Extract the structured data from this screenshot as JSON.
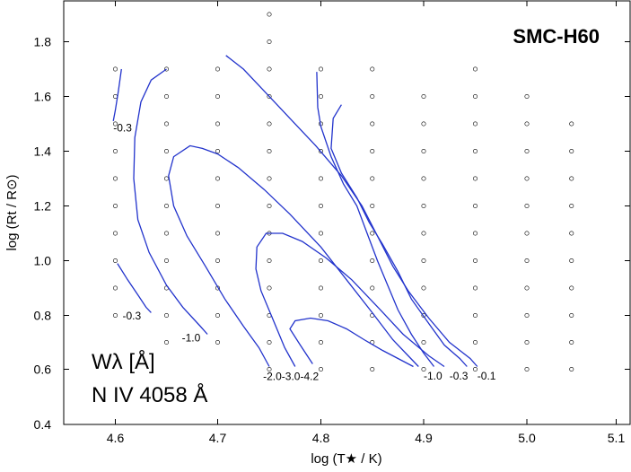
{
  "chart_data": {
    "type": "scatter",
    "title": "SMC-H60",
    "xlabel": "log (T★ / K)",
    "ylabel": "log (Rt / R⊙)",
    "xlim": [
      4.55,
      5.1
    ],
    "ylim": [
      0.4,
      1.95
    ],
    "x_ticks": [
      4.6,
      4.7,
      4.8,
      4.9,
      5.0,
      5.1
    ],
    "x_tick_labels": [
      "4.6",
      "4.7",
      "4.8",
      "4.9",
      "5.0",
      "5.1"
    ],
    "y_ticks": [
      0.4,
      0.6,
      0.8,
      1.0,
      1.2,
      1.4,
      1.6,
      1.8
    ],
    "y_tick_labels": [
      "0.4",
      "0.6",
      "0.8",
      "1.0",
      "1.2",
      "1.4",
      "1.6",
      "1.8"
    ],
    "annotation_lines": [
      "Wλ [Å]",
      "N IV 4058 Å"
    ],
    "grid": false,
    "model_grid": [
      {
        "x": 4.6,
        "y": [
          0.8,
          0.9,
          1.0,
          1.1,
          1.2,
          1.3,
          1.4,
          1.5,
          1.6,
          1.7
        ]
      },
      {
        "x": 4.65,
        "y": [
          0.7,
          0.8,
          0.9,
          1.0,
          1.1,
          1.2,
          1.3,
          1.4,
          1.5,
          1.6,
          1.7
        ]
      },
      {
        "x": 4.7,
        "y": [
          0.7,
          0.8,
          0.9,
          1.0,
          1.1,
          1.2,
          1.3,
          1.4,
          1.5,
          1.6,
          1.7
        ]
      },
      {
        "x": 4.75,
        "y": [
          0.6,
          0.7,
          0.8,
          0.9,
          1.0,
          1.1,
          1.2,
          1.3,
          1.4,
          1.5,
          1.6,
          1.7,
          1.8,
          1.9
        ]
      },
      {
        "x": 4.8,
        "y": [
          0.6,
          0.7,
          0.8,
          0.9,
          1.0,
          1.1,
          1.2,
          1.3,
          1.4,
          1.5,
          1.6,
          1.7
        ]
      },
      {
        "x": 4.85,
        "y": [
          0.6,
          0.7,
          0.8,
          0.9,
          1.0,
          1.1,
          1.2,
          1.3,
          1.4,
          1.5,
          1.6,
          1.7
        ]
      },
      {
        "x": 4.9,
        "y": [
          0.6,
          0.7,
          0.8,
          0.9,
          1.0,
          1.1,
          1.2,
          1.3,
          1.4,
          1.5,
          1.6
        ]
      },
      {
        "x": 4.95,
        "y": [
          0.6,
          0.7,
          0.8,
          0.9,
          1.0,
          1.1,
          1.2,
          1.3,
          1.4,
          1.5,
          1.6,
          1.7
        ]
      },
      {
        "x": 5.0,
        "y": [
          0.6,
          0.7,
          0.8,
          0.9,
          1.0,
          1.1,
          1.2,
          1.3,
          1.4,
          1.5,
          1.6
        ]
      },
      {
        "x": 5.05,
        "y": [
          0.6,
          0.7,
          0.8,
          0.9,
          1.0,
          1.1,
          1.2,
          1.3,
          1.4,
          1.5
        ]
      }
    ],
    "series": [
      {
        "name": "-0.3",
        "label_x": 4.598,
        "label_y": 1.486,
        "points": [
          [
            4.606,
            1.7
          ],
          [
            4.603,
            1.62
          ],
          [
            4.6,
            1.55
          ],
          [
            4.598,
            1.51
          ]
        ]
      },
      {
        "name": "-0.3",
        "label_x": 4.607,
        "label_y": 0.799,
        "points": [
          [
            4.602,
            0.99
          ],
          [
            4.612,
            0.93
          ],
          [
            4.623,
            0.87
          ],
          [
            4.63,
            0.83
          ],
          [
            4.635,
            0.81
          ]
        ]
      },
      {
        "name": "-1.0",
        "label_x": 4.665,
        "label_y": 0.716,
        "points": [
          [
            4.65,
            1.7
          ],
          [
            4.635,
            1.66
          ],
          [
            4.625,
            1.58
          ],
          [
            4.619,
            1.45
          ],
          [
            4.618,
            1.3
          ],
          [
            4.622,
            1.15
          ],
          [
            4.633,
            1.03
          ],
          [
            4.65,
            0.91
          ],
          [
            4.666,
            0.83
          ],
          [
            4.683,
            0.76
          ],
          [
            4.69,
            0.73
          ]
        ]
      },
      {
        "name": "-2.0",
        "label_x": 4.744,
        "label_y": 0.574,
        "points": [
          [
            4.708,
            1.75
          ],
          [
            4.725,
            1.7
          ],
          [
            4.745,
            1.62
          ],
          [
            4.77,
            1.52
          ],
          [
            4.795,
            1.42
          ],
          [
            4.82,
            1.31
          ],
          [
            4.84,
            1.2
          ],
          [
            4.855,
            1.09
          ],
          [
            4.87,
            0.98
          ],
          [
            4.885,
            0.89
          ],
          [
            4.905,
            0.79
          ],
          [
            4.925,
            0.7
          ],
          [
            4.945,
            0.64
          ],
          [
            4.952,
            0.61
          ]
        ]
      },
      {
        "name": "-3.0",
        "label_x": 4.762,
        "label_y": 0.574,
        "points": [
          [
            4.82,
            1.57
          ],
          [
            4.812,
            1.52
          ],
          [
            4.81,
            1.41
          ],
          [
            4.82,
            1.32
          ],
          [
            4.835,
            1.23
          ],
          [
            4.847,
            1.14
          ],
          [
            4.86,
            1.06
          ],
          [
            4.875,
            0.96
          ],
          [
            4.888,
            0.86
          ],
          [
            4.905,
            0.77
          ],
          [
            4.92,
            0.69
          ],
          [
            4.935,
            0.64
          ],
          [
            4.942,
            0.61
          ]
        ]
      },
      {
        "name": "-4.2",
        "label_x": 4.78,
        "label_y": 0.574,
        "points": [
          [
            4.796,
            1.69
          ],
          [
            4.797,
            1.56
          ],
          [
            4.8,
            1.49
          ],
          [
            4.81,
            1.38
          ],
          [
            4.822,
            1.28
          ],
          [
            4.835,
            1.2
          ],
          [
            4.845,
            1.1
          ],
          [
            4.855,
            1.0
          ],
          [
            4.865,
            0.91
          ],
          [
            4.875,
            0.82
          ],
          [
            4.888,
            0.73
          ],
          [
            4.9,
            0.66
          ],
          [
            4.91,
            0.61
          ]
        ]
      },
      {
        "name": "-1.0",
        "label_x": 4.9,
        "label_y": 0.575,
        "points": [
          [
            4.75,
            0.61
          ],
          [
            4.74,
            0.68
          ],
          [
            4.725,
            0.76
          ],
          [
            4.707,
            0.86
          ],
          [
            4.688,
            0.98
          ],
          [
            4.67,
            1.09
          ],
          [
            4.657,
            1.2
          ],
          [
            4.652,
            1.31
          ],
          [
            4.657,
            1.38
          ],
          [
            4.673,
            1.42
          ],
          [
            4.685,
            1.41
          ],
          [
            4.7,
            1.39
          ],
          [
            4.72,
            1.34
          ],
          [
            4.745,
            1.26
          ],
          [
            4.77,
            1.17
          ],
          [
            4.8,
            1.05
          ],
          [
            4.825,
            0.93
          ],
          [
            4.85,
            0.81
          ],
          [
            4.87,
            0.71
          ],
          [
            4.885,
            0.65
          ],
          [
            4.895,
            0.61
          ]
        ]
      },
      {
        "name": "-0.3",
        "label_x": 4.925,
        "label_y": 0.575,
        "points": [
          [
            4.775,
            0.61
          ],
          [
            4.765,
            0.68
          ],
          [
            4.753,
            0.79
          ],
          [
            4.742,
            0.89
          ],
          [
            4.737,
            0.97
          ],
          [
            4.738,
            1.05
          ],
          [
            4.747,
            1.1
          ],
          [
            4.763,
            1.1
          ],
          [
            4.782,
            1.07
          ],
          [
            4.805,
            1.01
          ],
          [
            4.83,
            0.93
          ],
          [
            4.858,
            0.82
          ],
          [
            4.88,
            0.73
          ],
          [
            4.905,
            0.65
          ],
          [
            4.92,
            0.61
          ]
        ]
      },
      {
        "name": "-0.1",
        "label_x": 4.952,
        "label_y": 0.575,
        "points": [
          [
            4.792,
            0.62
          ],
          [
            4.78,
            0.69
          ],
          [
            4.77,
            0.75
          ],
          [
            4.775,
            0.78
          ],
          [
            4.79,
            0.79
          ],
          [
            4.807,
            0.78
          ],
          [
            4.825,
            0.75
          ],
          [
            4.842,
            0.71
          ],
          [
            4.86,
            0.67
          ],
          [
            4.88,
            0.63
          ],
          [
            4.89,
            0.61
          ]
        ]
      }
    ]
  }
}
